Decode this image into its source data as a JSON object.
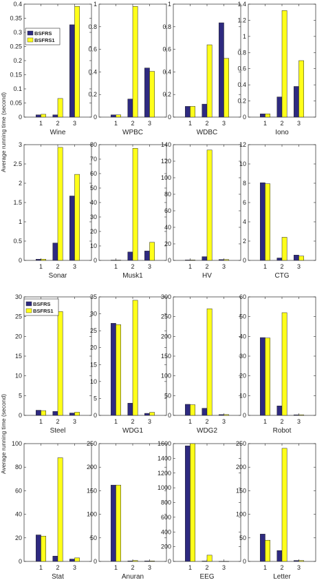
{
  "colors": {
    "series1": "#2e2a80",
    "series2": "#ffff1a",
    "axis": "#262626",
    "edge": "#222222"
  },
  "figure": {
    "ylabel_top": "Average running time (second)",
    "ylabel_bottom": "Average running time (second)"
  },
  "legend": [
    {
      "label": "BSFRS",
      "color": "#2e2a80"
    },
    {
      "label": "BSFRS1",
      "color": "#ffff1a"
    }
  ],
  "chart_data": [
    {
      "type": "bar",
      "title": "Wine",
      "categories": [
        "1",
        "2",
        "3"
      ],
      "ylim": [
        0,
        0.4
      ],
      "yticks": [
        "0",
        "0.05",
        "0.1",
        "0.15",
        "0.2",
        "0.25",
        "0.3",
        "0.35",
        "0.4"
      ],
      "series": [
        {
          "name": "BSFRS",
          "values": [
            0.008,
            0.008,
            0.327
          ]
        },
        {
          "name": "BSFRS1",
          "values": [
            0.01,
            0.066,
            0.392
          ]
        }
      ]
    },
    {
      "type": "bar",
      "title": "WPBC",
      "categories": [
        "1",
        "2",
        "3"
      ],
      "ylim": [
        0,
        1
      ],
      "yticks": [
        "0",
        "0.2",
        "0.4",
        "0.6",
        "0.8",
        "1"
      ],
      "series": [
        {
          "name": "BSFRS",
          "values": [
            0.02,
            0.16,
            0.435
          ]
        },
        {
          "name": "BSFRS1",
          "values": [
            0.02,
            0.98,
            0.405
          ]
        }
      ]
    },
    {
      "type": "bar",
      "title": "WDBC",
      "categories": [
        "1",
        "2",
        "3"
      ],
      "ylim": [
        0,
        1
      ],
      "yticks": [
        "0",
        "0.2",
        "0.4",
        "0.6",
        "0.8",
        "1"
      ],
      "series": [
        {
          "name": "BSFRS",
          "values": [
            0.095,
            0.115,
            0.835
          ]
        },
        {
          "name": "BSFRS1",
          "values": [
            0.095,
            0.64,
            0.52
          ]
        }
      ]
    },
    {
      "type": "bar",
      "title": "Iono",
      "categories": [
        "1",
        "2",
        "3"
      ],
      "ylim": [
        0,
        1.4
      ],
      "yticks": [
        "0",
        "0.2",
        "0.4",
        "0.6",
        "0.8",
        "1",
        "1.2",
        "1.4"
      ],
      "series": [
        {
          "name": "BSFRS",
          "values": [
            0.04,
            0.25,
            0.38
          ]
        },
        {
          "name": "BSFRS1",
          "values": [
            0.04,
            1.32,
            0.7
          ]
        }
      ]
    },
    {
      "type": "bar",
      "title": "Sonar",
      "categories": [
        "1",
        "2",
        "3"
      ],
      "ylim": [
        0,
        3
      ],
      "yticks": [
        "0",
        "0.5",
        "1",
        "1.5",
        "2",
        "2.5",
        "3"
      ],
      "series": [
        {
          "name": "BSFRS",
          "values": [
            0.03,
            0.45,
            1.67
          ]
        },
        {
          "name": "BSFRS1",
          "values": [
            0.03,
            2.93,
            2.23
          ]
        }
      ]
    },
    {
      "type": "bar",
      "title": "Musk1",
      "categories": [
        "1",
        "2",
        "3"
      ],
      "ylim": [
        0,
        80
      ],
      "yticks": [
        "0",
        "10",
        "20",
        "30",
        "40",
        "50",
        "60",
        "70",
        "80"
      ],
      "series": [
        {
          "name": "BSFRS",
          "values": [
            0.2,
            5.8,
            6.5
          ]
        },
        {
          "name": "BSFRS1",
          "values": [
            0.2,
            77.5,
            12.5
          ]
        }
      ]
    },
    {
      "type": "bar",
      "title": "HV",
      "categories": [
        "1",
        "2",
        "3"
      ],
      "ylim": [
        0,
        140
      ],
      "yticks": [
        "0",
        "20",
        "40",
        "60",
        "80",
        "100",
        "120",
        "140"
      ],
      "series": [
        {
          "name": "BSFRS",
          "values": [
            0.5,
            4.5,
            1.0
          ]
        },
        {
          "name": "BSFRS1",
          "values": [
            0.5,
            133.5,
            1.0
          ]
        }
      ]
    },
    {
      "type": "bar",
      "title": "CTG",
      "categories": [
        "1",
        "2",
        "3"
      ],
      "ylim": [
        0,
        12
      ],
      "yticks": [
        "0",
        "2",
        "4",
        "6",
        "8",
        "10",
        "12"
      ],
      "series": [
        {
          "name": "BSFRS",
          "values": [
            8.05,
            0.25,
            0.55
          ]
        },
        {
          "name": "BSFRS1",
          "values": [
            7.95,
            2.4,
            0.45
          ]
        }
      ]
    },
    {
      "type": "bar",
      "title": "Steel",
      "categories": [
        "1",
        "2",
        "3"
      ],
      "ylim": [
        0,
        30
      ],
      "yticks": [
        "0",
        "5",
        "10",
        "15",
        "20",
        "25",
        "30"
      ],
      "series": [
        {
          "name": "BSFRS",
          "values": [
            1.3,
            1.0,
            0.6
          ]
        },
        {
          "name": "BSFRS1",
          "values": [
            1.2,
            26.3,
            0.8
          ]
        }
      ]
    },
    {
      "type": "bar",
      "title": "WDG1",
      "categories": [
        "1",
        "2",
        "3"
      ],
      "ylim": [
        0,
        35
      ],
      "yticks": [
        "0",
        "5",
        "10",
        "15",
        "20",
        "25",
        "30",
        "35"
      ],
      "series": [
        {
          "name": "BSFRS",
          "values": [
            27.2,
            3.6,
            0.6
          ]
        },
        {
          "name": "BSFRS1",
          "values": [
            26.8,
            34.0,
            0.9
          ]
        }
      ]
    },
    {
      "type": "bar",
      "title": "WDG2",
      "categories": [
        "1",
        "2",
        "3"
      ],
      "ylim": [
        0,
        300
      ],
      "yticks": [
        "0",
        "50",
        "100",
        "150",
        "200",
        "250",
        "300"
      ],
      "series": [
        {
          "name": "BSFRS",
          "values": [
            28,
            18,
            2
          ]
        },
        {
          "name": "BSFRS1",
          "values": [
            27,
            270,
            2
          ]
        }
      ]
    },
    {
      "type": "bar",
      "title": "Robot",
      "categories": [
        "1",
        "2",
        "3"
      ],
      "ylim": [
        0,
        60
      ],
      "yticks": [
        "0",
        "10",
        "20",
        "30",
        "40",
        "50",
        "60"
      ],
      "series": [
        {
          "name": "BSFRS",
          "values": [
            39.4,
            4.8,
            0.3
          ]
        },
        {
          "name": "BSFRS1",
          "values": [
            39.2,
            52.0,
            0.3
          ]
        }
      ]
    },
    {
      "type": "bar",
      "title": "Stat",
      "categories": [
        "1",
        "2",
        "3"
      ],
      "ylim": [
        0,
        100
      ],
      "yticks": [
        "0",
        "20",
        "40",
        "60",
        "80",
        "100"
      ],
      "series": [
        {
          "name": "BSFRS",
          "values": [
            22.5,
            4.5,
            2.0
          ]
        },
        {
          "name": "BSFRS1",
          "values": [
            21.5,
            88.0,
            3.0
          ]
        }
      ]
    },
    {
      "type": "bar",
      "title": "Anuran",
      "categories": [
        "1",
        "2",
        "3"
      ],
      "ylim": [
        0,
        250
      ],
      "yticks": [
        "0",
        "50",
        "100",
        "150",
        "200",
        "250"
      ],
      "series": [
        {
          "name": "BSFRS",
          "values": [
            162,
            1,
            1
          ]
        },
        {
          "name": "BSFRS1",
          "values": [
            162,
            2,
            1
          ]
        }
      ]
    },
    {
      "type": "bar",
      "title": "EEG",
      "categories": [
        "1",
        "2",
        "3"
      ],
      "ylim": [
        0,
        1600
      ],
      "yticks": [
        "0",
        "200",
        "400",
        "600",
        "800",
        "1000",
        "1200",
        "1400",
        "1600"
      ],
      "series": [
        {
          "name": "BSFRS",
          "values": [
            1570,
            5,
            2
          ]
        },
        {
          "name": "BSFRS1",
          "values": [
            1600,
            85,
            2
          ]
        }
      ]
    },
    {
      "type": "bar",
      "title": "Letter",
      "categories": [
        "1",
        "2",
        "3"
      ],
      "ylim": [
        0,
        250
      ],
      "yticks": [
        "0",
        "50",
        "100",
        "150",
        "200",
        "250"
      ],
      "series": [
        {
          "name": "BSFRS",
          "values": [
            58,
            23,
            2
          ]
        },
        {
          "name": "BSFRS1",
          "values": [
            45,
            240,
            2
          ]
        }
      ]
    }
  ]
}
